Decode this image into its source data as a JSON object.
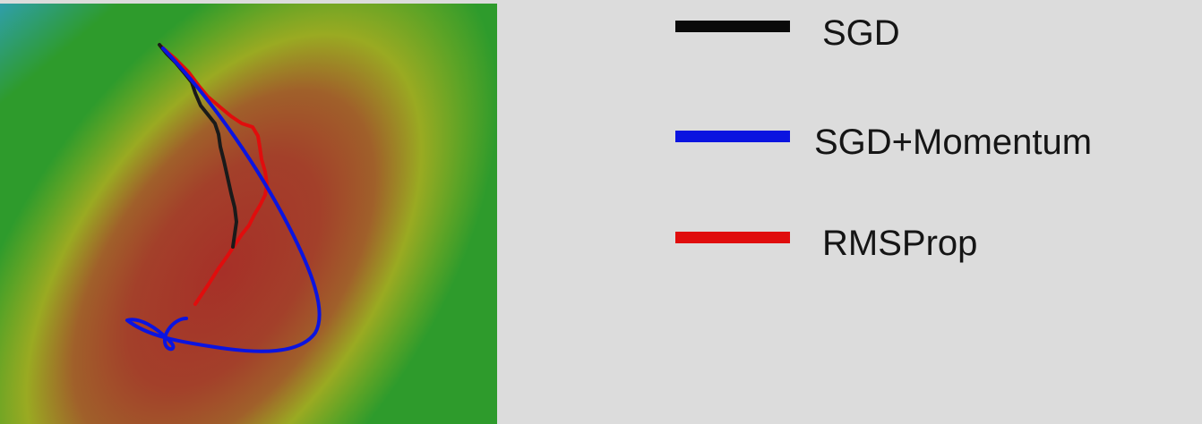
{
  "legend": {
    "items": [
      {
        "label": "SGD",
        "color": "#0a0a0a"
      },
      {
        "label": "SGD+Momentum",
        "color": "#0b14e0"
      },
      {
        "label": "RMSProp",
        "color": "#e00d0d"
      }
    ]
  },
  "surface": {
    "colormap": [
      "#2f9fb8",
      "#2e9b2c",
      "#9aaa22",
      "#a0522d",
      "#a63028"
    ]
  }
}
